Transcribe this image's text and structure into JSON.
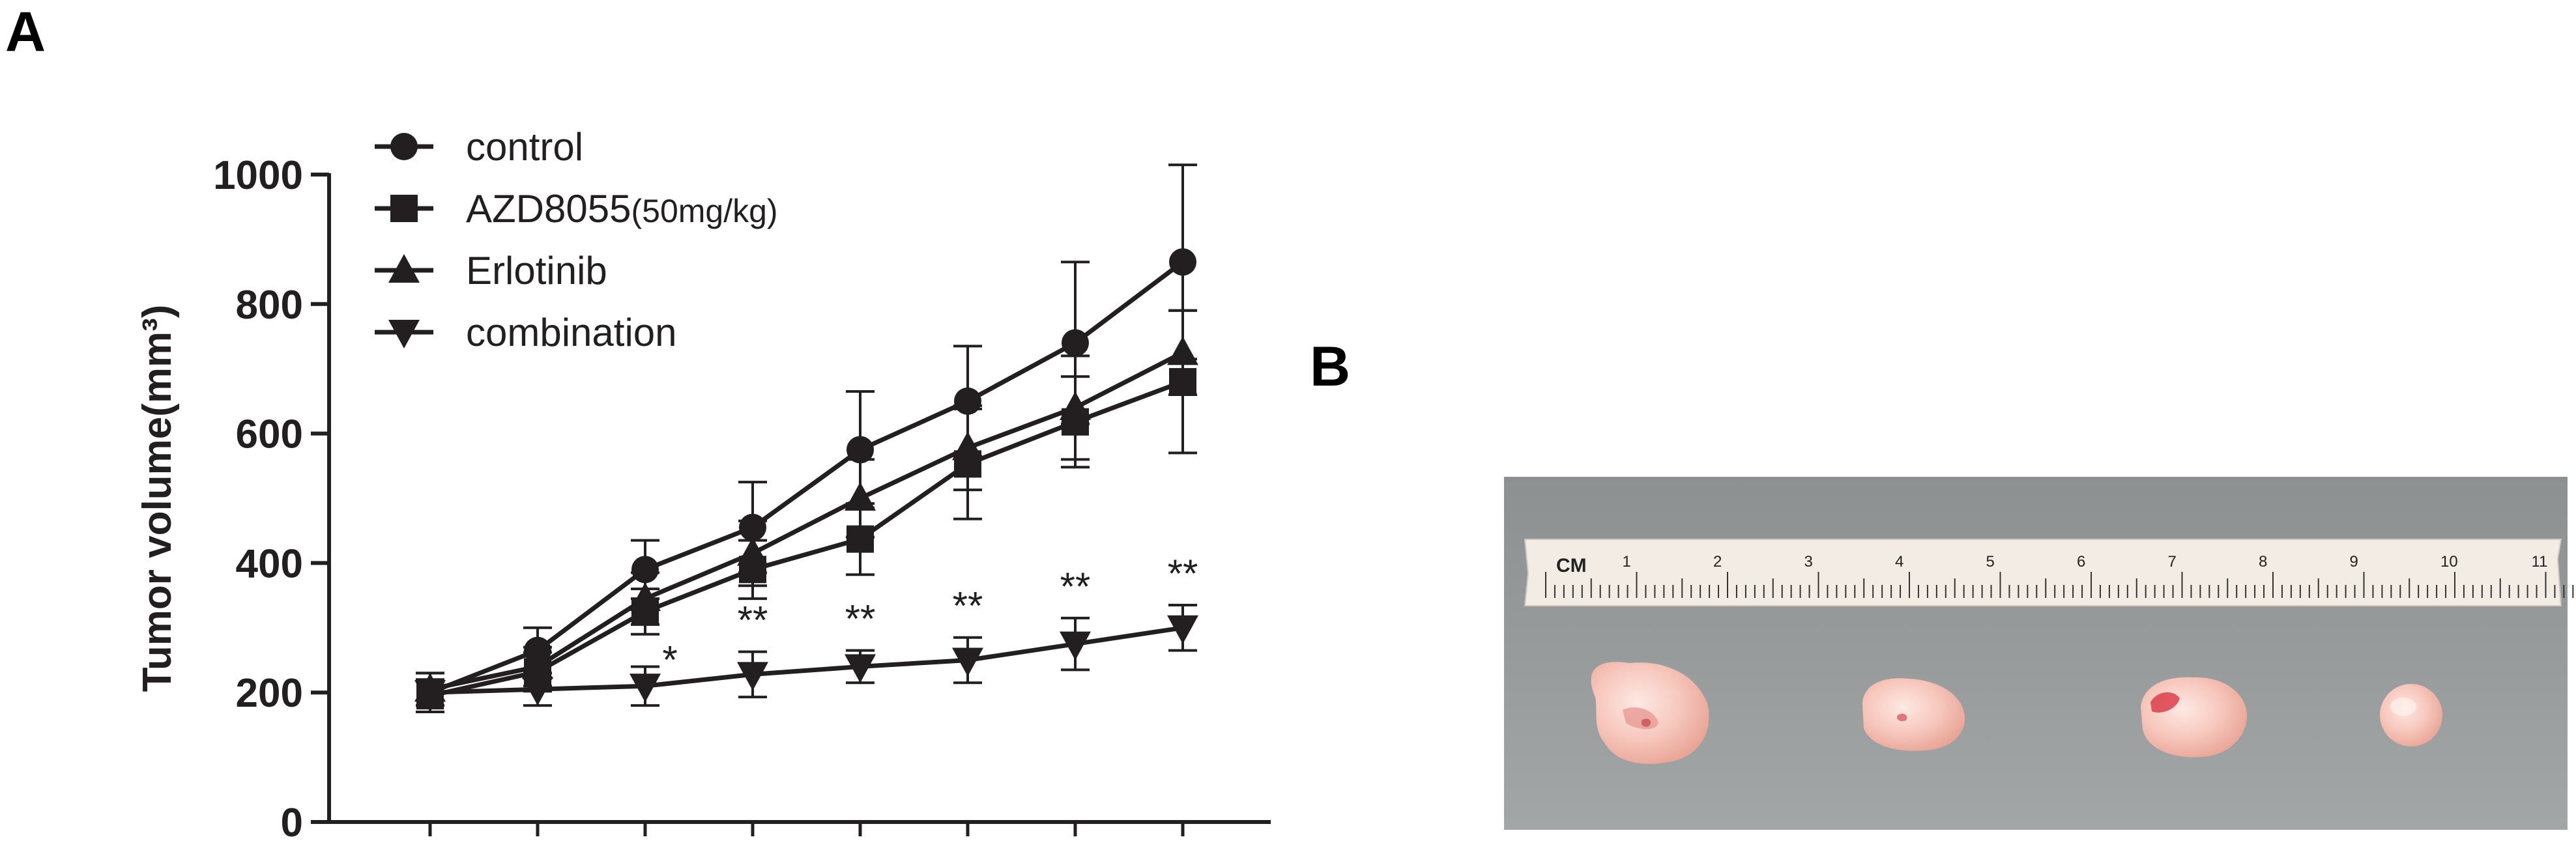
{
  "panels": {
    "a_label": "A",
    "b_label": "B"
  },
  "chart_data": {
    "type": "line",
    "title": "",
    "xlabel": "",
    "ylabel": "Tumor volume(mm³)",
    "ylim": [
      0,
      1000
    ],
    "yticks": [
      0,
      200,
      400,
      600,
      800,
      1000
    ],
    "x": [
      1,
      2,
      3,
      4,
      5,
      6,
      7,
      8
    ],
    "legend_position": "top-left",
    "series": [
      {
        "name": "control",
        "marker": "circle",
        "values": [
          200,
          265,
          390,
          455,
          575,
          650,
          740,
          865
        ],
        "errors": [
          30,
          35,
          45,
          70,
          90,
          85,
          125,
          150
        ]
      },
      {
        "name": "AZD8055",
        "name_suffix": "(50mg/kg)",
        "marker": "square",
        "values": [
          195,
          232,
          325,
          390,
          437,
          553,
          618,
          680
        ],
        "errors": [
          25,
          30,
          35,
          45,
          55,
          85,
          70,
          110
        ]
      },
      {
        "name": "Erlotinib",
        "marker": "triangle-up",
        "values": [
          205,
          240,
          345,
          415,
          500,
          578,
          640,
          725
        ],
        "errors": [
          25,
          30,
          40,
          50,
          60,
          65,
          80,
          65
        ]
      },
      {
        "name": "combination",
        "marker": "triangle-down",
        "values": [
          200,
          205,
          210,
          228,
          240,
          250,
          275,
          300
        ],
        "errors": [
          20,
          25,
          30,
          35,
          25,
          35,
          40,
          35
        ]
      }
    ],
    "significance": [
      {
        "x": 3,
        "label": "*"
      },
      {
        "x": 4,
        "label": "**"
      },
      {
        "x": 5,
        "label": "**"
      },
      {
        "x": 6,
        "label": "**"
      },
      {
        "x": 7,
        "label": "**"
      },
      {
        "x": 8,
        "label": "**"
      }
    ]
  },
  "photo": {
    "ruler_unit": "CM",
    "ruler_numbers": [
      "1",
      "2",
      "3",
      "4",
      "5",
      "6",
      "7",
      "8",
      "9",
      "10",
      "11"
    ],
    "tumor_count": 4
  }
}
